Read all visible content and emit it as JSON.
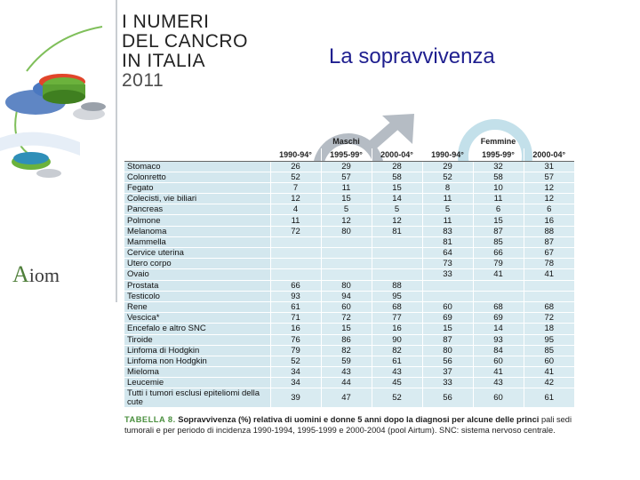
{
  "brand": {
    "line1": "I NUMERI",
    "line2": "DEL CANCRO",
    "line3": "IN ITALIA",
    "line4": "2011"
  },
  "slide_title": "La sopravvivenza",
  "logo_text": {
    "first": "A",
    "rest": "iom"
  },
  "table": {
    "group_headers": [
      "Maschi",
      "Femmine"
    ],
    "year_headers": [
      "1990-94°",
      "1995-99°",
      "2000-04°",
      "1990-94°",
      "1995-99°",
      "2000-04°"
    ],
    "rows": [
      {
        "name": "Stomaco",
        "values": [
          "26",
          "29",
          "28",
          "29",
          "32",
          "31"
        ]
      },
      {
        "name": "Colonretto",
        "values": [
          "52",
          "57",
          "58",
          "52",
          "58",
          "57"
        ]
      },
      {
        "name": "Fegato",
        "values": [
          "7",
          "11",
          "15",
          "8",
          "10",
          "12"
        ]
      },
      {
        "name": "Colecisti, vie biliari",
        "values": [
          "12",
          "15",
          "14",
          "11",
          "11",
          "12"
        ]
      },
      {
        "name": "Pancreas",
        "values": [
          "4",
          "5",
          "5",
          "5",
          "6",
          "6"
        ]
      },
      {
        "name": "Polmone",
        "values": [
          "11",
          "12",
          "12",
          "11",
          "15",
          "16"
        ]
      },
      {
        "name": "Melanoma",
        "values": [
          "72",
          "80",
          "81",
          "83",
          "87",
          "88"
        ]
      },
      {
        "name": "Mammella",
        "values": [
          "",
          "",
          "",
          "81",
          "85",
          "87"
        ]
      },
      {
        "name": "Cervice uterina",
        "values": [
          "",
          "",
          "",
          "64",
          "66",
          "67"
        ]
      },
      {
        "name": "Utero corpo",
        "values": [
          "",
          "",
          "",
          "73",
          "79",
          "78"
        ]
      },
      {
        "name": "Ovaio",
        "values": [
          "",
          "",
          "",
          "33",
          "41",
          "41"
        ]
      },
      {
        "name": "Prostata",
        "values": [
          "66",
          "80",
          "88",
          "",
          "",
          ""
        ]
      },
      {
        "name": "Testicolo",
        "values": [
          "93",
          "94",
          "95",
          "",
          "",
          ""
        ]
      },
      {
        "name": "Rene",
        "values": [
          "61",
          "60",
          "68",
          "60",
          "68",
          "68"
        ]
      },
      {
        "name": "Vescica*",
        "values": [
          "71",
          "72",
          "77",
          "69",
          "69",
          "72"
        ]
      },
      {
        "name": "Encefalo e altro SNC",
        "values": [
          "16",
          "15",
          "16",
          "15",
          "14",
          "18"
        ]
      },
      {
        "name": "Tiroide",
        "values": [
          "76",
          "86",
          "90",
          "87",
          "93",
          "95"
        ]
      },
      {
        "name": "Linfoma di Hodgkin",
        "values": [
          "79",
          "82",
          "82",
          "80",
          "84",
          "85"
        ]
      },
      {
        "name": "Linfoma non Hodgkin",
        "values": [
          "52",
          "59",
          "61",
          "56",
          "60",
          "60"
        ]
      },
      {
        "name": "Mieloma",
        "values": [
          "34",
          "43",
          "43",
          "37",
          "41",
          "41"
        ]
      },
      {
        "name": "Leucemie",
        "values": [
          "34",
          "44",
          "45",
          "33",
          "43",
          "42"
        ]
      },
      {
        "name": "Tutti i tumori esclusi epiteliomi della cute",
        "values": [
          "39",
          "47",
          "52",
          "56",
          "60",
          "61"
        ]
      }
    ]
  },
  "caption": {
    "label": "TABELLA 8.",
    "title": "Sopravvivenza (%) relativa di uomini e donne 5 anni dopo la diagnosi per alcune delle princi",
    "text": "pali sedi tumorali e per periodo di incidenza 1990-1994, 1995-1999 e 2000-2004 (pool Airtum). SNC: sistema nervoso centrale."
  },
  "colors": {
    "title_blue": "#1f1f8f",
    "row_fill": "#d9ebf1",
    "label_green": "#4a8f3e"
  }
}
